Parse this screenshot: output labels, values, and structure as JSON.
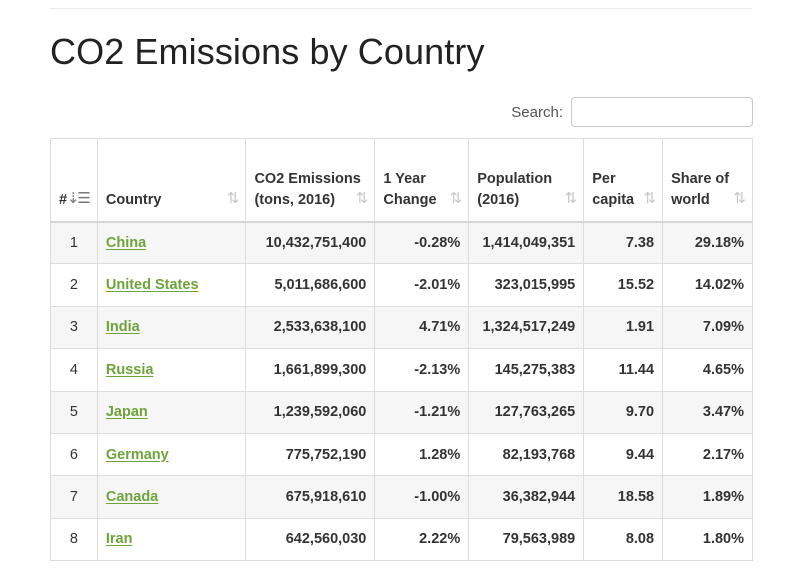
{
  "page": {
    "title": "CO2 Emissions by Country"
  },
  "search": {
    "label": "Search:",
    "value": ""
  },
  "table": {
    "headers": {
      "rank": "#",
      "country": "Country",
      "co2": "CO2 Emissions (tons, 2016)",
      "change": "1 Year Change",
      "population": "Population (2016)",
      "per_capita": "Per capita",
      "share": "Share of world"
    },
    "sorted_column": "rank",
    "rows": [
      {
        "rank": "1",
        "country": "China",
        "co2": "10,432,751,400",
        "change": "-0.28%",
        "population": "1,414,049,351",
        "per_capita": "7.38",
        "share": "29.18%"
      },
      {
        "rank": "2",
        "country": "United States",
        "co2": "5,011,686,600",
        "change": "-2.01%",
        "population": "323,015,995",
        "per_capita": "15.52",
        "share": "14.02%"
      },
      {
        "rank": "3",
        "country": "India",
        "co2": "2,533,638,100",
        "change": "4.71%",
        "population": "1,324,517,249",
        "per_capita": "1.91",
        "share": "7.09%"
      },
      {
        "rank": "4",
        "country": "Russia",
        "co2": "1,661,899,300",
        "change": "-2.13%",
        "population": "145,275,383",
        "per_capita": "11.44",
        "share": "4.65%"
      },
      {
        "rank": "5",
        "country": "Japan",
        "co2": "1,239,592,060",
        "change": "-1.21%",
        "population": "127,763,265",
        "per_capita": "9.70",
        "share": "3.47%"
      },
      {
        "rank": "6",
        "country": "Germany",
        "co2": "775,752,190",
        "change": "1.28%",
        "population": "82,193,768",
        "per_capita": "9.44",
        "share": "2.17%"
      },
      {
        "rank": "7",
        "country": "Canada",
        "co2": "675,918,610",
        "change": "-1.00%",
        "population": "36,382,944",
        "per_capita": "18.58",
        "share": "1.89%"
      },
      {
        "rank": "8",
        "country": "Iran",
        "co2": "642,560,030",
        "change": "2.22%",
        "population": "79,563,989",
        "per_capita": "8.08",
        "share": "1.80%"
      }
    ]
  },
  "colors": {
    "link": "#6ea33a",
    "stripe": "#f6f6f6",
    "border": "#dddddd"
  },
  "icons": {
    "sort_active": "sort-numeric-asc-icon",
    "sort_inactive": "sort-both-icon"
  }
}
